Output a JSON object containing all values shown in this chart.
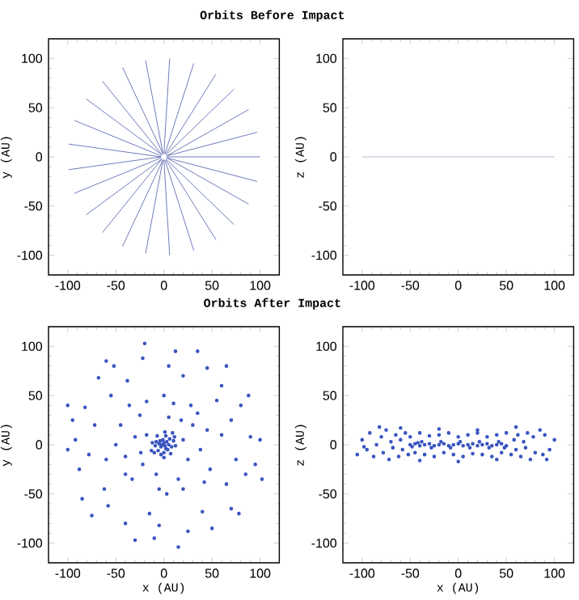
{
  "chart_data": [
    {
      "type": "line",
      "title": "Orbits Before Impact",
      "ylabel": "y (AU)",
      "xlim": [
        -120,
        120
      ],
      "ylim": [
        -120,
        120
      ],
      "xticks": [
        -100,
        -50,
        0,
        50,
        100
      ],
      "yticks": [
        -100,
        -50,
        0,
        50,
        100
      ],
      "grid": false,
      "series": [
        {
          "color": "#4a5aa8",
          "x": [
            3,
            100
          ],
          "values": [
            0,
            0
          ]
        },
        {
          "color": "#4a5aa8",
          "x": [
            3,
            97
          ],
          "values": [
            1,
            25
          ]
        },
        {
          "color": "#4a5aa8",
          "x": [
            3,
            88
          ],
          "values": [
            1,
            48
          ]
        },
        {
          "color": "#4a5aa8",
          "x": [
            2,
            73
          ],
          "values": [
            2,
            69
          ]
        },
        {
          "color": "#4a5aa8",
          "x": [
            2,
            54
          ],
          "values": [
            3,
            84
          ]
        },
        {
          "color": "#4a5aa8",
          "x": [
            1,
            31
          ],
          "values": [
            3,
            95
          ]
        },
        {
          "color": "#4a5aa8",
          "x": [
            0,
            6
          ],
          "values": [
            3,
            100
          ]
        },
        {
          "color": "#4a5aa8",
          "x": [
            -1,
            -19
          ],
          "values": [
            3,
            98
          ]
        },
        {
          "color": "#4a5aa8",
          "x": [
            -1,
            -43
          ],
          "values": [
            3,
            91
          ]
        },
        {
          "color": "#4a5aa8",
          "x": [
            -2,
            -64
          ],
          "values": [
            2,
            77
          ]
        },
        {
          "color": "#4a5aa8",
          "x": [
            -2,
            -81
          ],
          "values": [
            2,
            59
          ]
        },
        {
          "color": "#4a5aa8",
          "x": [
            -3,
            -93
          ],
          "values": [
            1,
            37
          ]
        },
        {
          "color": "#4a5aa8",
          "x": [
            -3,
            -99
          ],
          "values": [
            0,
            13
          ]
        },
        {
          "color": "#4a5aa8",
          "x": [
            -3,
            -99
          ],
          "values": [
            0,
            -13
          ]
        },
        {
          "color": "#4a5aa8",
          "x": [
            -3,
            -93
          ],
          "values": [
            -1,
            -37
          ]
        },
        {
          "color": "#4a5aa8",
          "x": [
            -2,
            -81
          ],
          "values": [
            -2,
            -59
          ]
        },
        {
          "color": "#4a5aa8",
          "x": [
            -2,
            -64
          ],
          "values": [
            -2,
            -77
          ]
        },
        {
          "color": "#4a5aa8",
          "x": [
            -1,
            -43
          ],
          "values": [
            -3,
            -91
          ]
        },
        {
          "color": "#4a5aa8",
          "x": [
            -1,
            -19
          ],
          "values": [
            -3,
            -98
          ]
        },
        {
          "color": "#4a5aa8",
          "x": [
            0,
            6
          ],
          "values": [
            -3,
            -100
          ]
        },
        {
          "color": "#4a5aa8",
          "x": [
            1,
            31
          ],
          "values": [
            -3,
            -95
          ]
        },
        {
          "color": "#4a5aa8",
          "x": [
            2,
            54
          ],
          "values": [
            -3,
            -84
          ]
        },
        {
          "color": "#4a5aa8",
          "x": [
            2,
            73
          ],
          "values": [
            -2,
            -69
          ]
        },
        {
          "color": "#4a5aa8",
          "x": [
            3,
            88
          ],
          "values": [
            -1,
            -48
          ]
        },
        {
          "color": "#4a5aa8",
          "x": [
            3,
            97
          ],
          "values": [
            -1,
            -25
          ]
        }
      ]
    },
    {
      "type": "line",
      "ylabel": "z (AU)",
      "xlim": [
        -120,
        120
      ],
      "ylim": [
        -120,
        120
      ],
      "xticks": [
        -100,
        -50,
        0,
        50,
        100
      ],
      "yticks": [
        -100,
        -50,
        0,
        50,
        100
      ],
      "grid": false,
      "series": [
        {
          "color": "#a0a8c8",
          "x": [
            -100,
            100
          ],
          "values": [
            0,
            0
          ]
        }
      ]
    },
    {
      "type": "scatter",
      "title": "Orbits After Impact",
      "xlabel": "x (AU)",
      "ylabel": "y (AU)",
      "xlim": [
        -120,
        120
      ],
      "ylim": [
        -120,
        120
      ],
      "xticks": [
        -100,
        -50,
        0,
        50,
        100
      ],
      "yticks": [
        -100,
        -50,
        0,
        50,
        100
      ],
      "grid": false,
      "series": [
        {
          "color": "#3a55c0",
          "x": [
            0,
            1,
            -2,
            3,
            -3,
            2,
            -1,
            5,
            -5,
            4,
            -4,
            6,
            -6,
            0,
            8,
            -8,
            2,
            -9,
            10,
            -3,
            7,
            -7,
            12,
            -12,
            1,
            0,
            11,
            -10,
            9,
            -13,
            20,
            -18,
            25,
            -22,
            5,
            -8,
            30,
            -30,
            15,
            -25,
            38,
            -40,
            10,
            -5,
            35,
            -33,
            45,
            -45,
            20,
            -18,
            28,
            -40,
            48,
            -50,
            0,
            3,
            42,
            -36,
            18,
            -24,
            60,
            -60,
            55,
            -55,
            65,
            -62,
            20,
            -15,
            70,
            -72,
            40,
            -38,
            75,
            -78,
            5,
            -5,
            60,
            -58,
            80,
            -82,
            45,
            -40,
            85,
            -88,
            25,
            -22,
            90,
            -92,
            70,
            -68,
            12,
            -10,
            95,
            -95,
            50,
            -52,
            88,
            -85,
            100,
            -100,
            35,
            -30,
            78,
            -75,
            65,
            -60,
            102,
            -100,
            15,
            -20
          ],
          "values": [
            2,
            -1,
            0,
            3,
            -2,
            -4,
            5,
            0,
            1,
            -5,
            4,
            6,
            -6,
            -8,
            -2,
            3,
            9,
            -1,
            4,
            -10,
            -9,
            9,
            -1,
            2,
            13,
            -13,
            8,
            -8,
            12,
            -6,
            5,
            10,
            -15,
            -20,
            28,
            -30,
            20,
            8,
            -35,
            30,
            -5,
            -12,
            42,
            -45,
            32,
            -35,
            15,
            20,
            -45,
            44,
            40,
            -30,
            -25,
            0,
            50,
            -50,
            -38,
            40,
            25,
            -8,
            10,
            -15,
            45,
            50,
            -40,
            -45,
            70,
            -70,
            25,
            20,
            -68,
            65,
            -15,
            -10,
            80,
            -82,
            60,
            -62,
            40,
            38,
            78,
            -80,
            -30,
            -25,
            -88,
            88,
            8,
            5,
            -65,
            68,
            95,
            -95,
            -20,
            25,
            -85,
            80,
            50,
            -55,
            5,
            -5,
            95,
            -97,
            -70,
            -72,
            80,
            85,
            -35,
            40,
            -104,
            103
          ]
        }
      ]
    },
    {
      "type": "scatter",
      "xlabel": "x (AU)",
      "ylabel": "z (AU)",
      "xlim": [
        -120,
        120
      ],
      "ylim": [
        -120,
        120
      ],
      "xticks": [
        -100,
        -50,
        0,
        50,
        100
      ],
      "yticks": [
        -100,
        -50,
        0,
        50,
        100
      ],
      "grid": false,
      "series": [
        {
          "color": "#3a55c0",
          "x": [
            -50,
            -45,
            -40,
            -35,
            -30,
            -25,
            -20,
            -15,
            -10,
            -5,
            0,
            5,
            10,
            15,
            20,
            25,
            30,
            35,
            40,
            45,
            50,
            -48,
            -42,
            -38,
            -28,
            -18,
            -8,
            2,
            12,
            22,
            32,
            42,
            48,
            -105,
            -100,
            -95,
            -92,
            -88,
            -85,
            -80,
            -78,
            -75,
            -72,
            -70,
            -68,
            -65,
            -62,
            -60,
            -58,
            -55,
            -52,
            -50,
            -45,
            -40,
            -35,
            -30,
            -25,
            -20,
            -15,
            -10,
            -5,
            0,
            5,
            10,
            15,
            20,
            25,
            30,
            35,
            40,
            45,
            50,
            55,
            58,
            60,
            62,
            65,
            68,
            70,
            72,
            75,
            78,
            80,
            85,
            88,
            90,
            95,
            100,
            -98,
            -82,
            -60,
            -40,
            -20,
            0,
            20,
            40,
            60,
            92
          ],
          "values": [
            0,
            1,
            -1,
            0,
            1,
            -1,
            0,
            1,
            -1,
            0,
            1,
            -1,
            0,
            1,
            -1,
            0,
            1,
            -1,
            0,
            1,
            -1,
            -2,
            2,
            3,
            -3,
            3,
            -3,
            3,
            -3,
            3,
            -3,
            3,
            -3,
            -10,
            5,
            -5,
            12,
            -12,
            0,
            8,
            -8,
            15,
            -15,
            3,
            -3,
            10,
            -12,
            5,
            -5,
            12,
            -10,
            8,
            -8,
            12,
            -10,
            9,
            -12,
            10,
            -8,
            12,
            -10,
            8,
            -12,
            10,
            -9,
            12,
            -10,
            8,
            -12,
            10,
            -8,
            12,
            -10,
            5,
            -5,
            10,
            -12,
            3,
            -3,
            12,
            -15,
            8,
            -8,
            15,
            -10,
            10,
            -5,
            5,
            -2,
            18,
            17,
            -16,
            16,
            -17,
            15,
            -15,
            18,
            -15
          ]
        }
      ]
    }
  ]
}
